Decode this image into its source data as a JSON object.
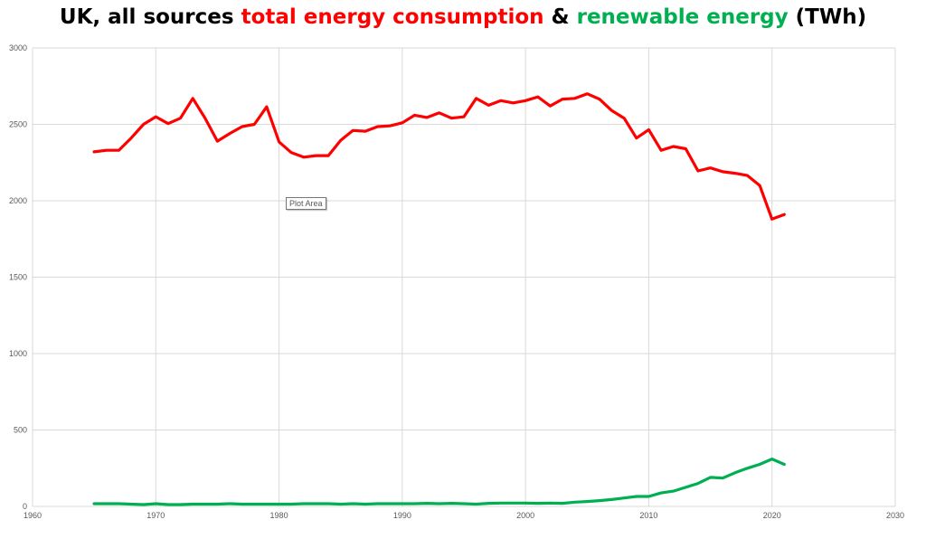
{
  "chart_data": {
    "type": "line",
    "title_parts": [
      {
        "text": "UK, all sources ",
        "color": "#000000"
      },
      {
        "text": "total energy consumption",
        "color": "#ff0000"
      },
      {
        "text": " & ",
        "color": "#000000"
      },
      {
        "text": "renewable energy",
        "color": "#00b050"
      },
      {
        "text": " (TWh)",
        "color": "#000000"
      }
    ],
    "xlim": [
      1960,
      2030
    ],
    "ylim": [
      0,
      3000
    ],
    "x_ticks": [
      1960,
      1970,
      1980,
      1990,
      2000,
      2010,
      2020,
      2030
    ],
    "y_ticks": [
      0,
      500,
      1000,
      1500,
      2000,
      2500,
      3000
    ],
    "grid": true,
    "series": [
      {
        "color": "#ff0000",
        "x": [
          1965,
          1966,
          1967,
          1968,
          1969,
          1970,
          1971,
          1972,
          1973,
          1974,
          1975,
          1976,
          1977,
          1978,
          1979,
          1980,
          1981,
          1982,
          1983,
          1984,
          1985,
          1986,
          1987,
          1988,
          1989,
          1990,
          1991,
          1992,
          1993,
          1994,
          1995,
          1996,
          1997,
          1998,
          1999,
          2000,
          2001,
          2002,
          2003,
          2004,
          2005,
          2006,
          2007,
          2008,
          2009,
          2010,
          2011,
          2012,
          2013,
          2014,
          2015,
          2016,
          2017,
          2018,
          2019,
          2020,
          2021
        ],
        "values": [
          2320,
          2330,
          2330,
          2410,
          2500,
          2550,
          2505,
          2540,
          2670,
          2540,
          2390,
          2440,
          2485,
          2500,
          2615,
          2385,
          2315,
          2285,
          2295,
          2295,
          2395,
          2460,
          2455,
          2485,
          2490,
          2510,
          2560,
          2545,
          2575,
          2540,
          2550,
          2670,
          2625,
          2655,
          2640,
          2655,
          2680,
          2620,
          2665,
          2670,
          2700,
          2665,
          2590,
          2540,
          2410,
          2465,
          2330,
          2355,
          2340,
          2195,
          2215,
          2190,
          2180,
          2165,
          2100,
          1880,
          1910
        ]
      },
      {
        "color": "#00b050",
        "x": [
          1965,
          1966,
          1967,
          1968,
          1969,
          1970,
          1971,
          1972,
          1973,
          1974,
          1975,
          1976,
          1977,
          1978,
          1979,
          1980,
          1981,
          1982,
          1983,
          1984,
          1985,
          1986,
          1987,
          1988,
          1989,
          1990,
          1991,
          1992,
          1993,
          1994,
          1995,
          1996,
          1997,
          1998,
          1999,
          2000,
          2001,
          2002,
          2003,
          2004,
          2005,
          2006,
          2007,
          2008,
          2009,
          2010,
          2011,
          2012,
          2013,
          2014,
          2015,
          2016,
          2017,
          2018,
          2019,
          2020,
          2021
        ],
        "values": [
          18,
          18,
          18,
          15,
          12,
          18,
          12,
          12,
          15,
          15,
          15,
          18,
          15,
          15,
          15,
          15,
          15,
          18,
          18,
          18,
          15,
          18,
          15,
          18,
          18,
          18,
          18,
          20,
          18,
          20,
          18,
          15,
          20,
          22,
          22,
          22,
          20,
          22,
          20,
          28,
          32,
          38,
          45,
          55,
          65,
          65,
          88,
          100,
          125,
          150,
          190,
          185,
          220,
          250,
          275,
          310,
          275
        ]
      }
    ]
  },
  "tooltip": {
    "label": "Plot Area"
  }
}
